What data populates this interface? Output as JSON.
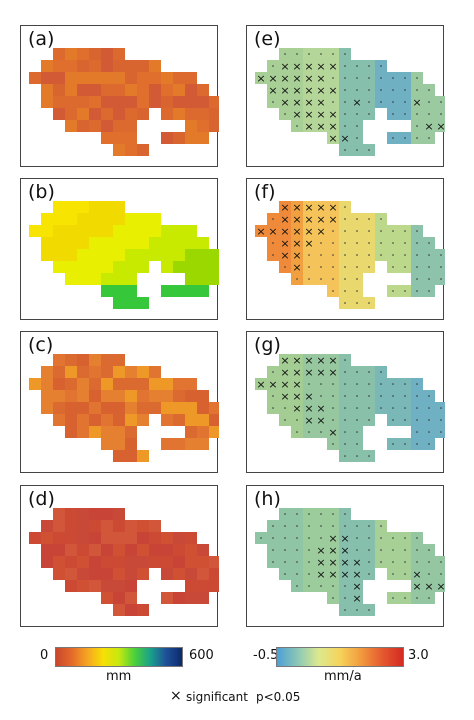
{
  "panels": [
    {
      "id": "a",
      "label": "(a)",
      "kind": "clim",
      "colors": [
        "#d86430",
        "#dc6a2e",
        "#e06e2c",
        "#d25a34",
        "#e27a2a"
      ]
    },
    {
      "id": "b",
      "label": "(b)",
      "kind": "clim",
      "colors": [
        "#f7e400",
        "#f0da00",
        "#e8ef00",
        "#c8ea00",
        "#9ad800"
      ]
    },
    {
      "id": "c",
      "label": "(c)",
      "kind": "clim",
      "colors": [
        "#da6a30",
        "#e07430",
        "#e58030",
        "#ee9828",
        "#d8622f"
      ]
    },
    {
      "id": "d",
      "label": "(d)",
      "kind": "clim",
      "colors": [
        "#cc4a34",
        "#d05034",
        "#c84436",
        "#d2563a",
        "#c94938"
      ]
    },
    {
      "id": "e",
      "label": "(e)",
      "kind": "trend",
      "colors": [
        "#a7cf96",
        "#b5d699",
        "#86c0ac",
        "#6fb0c2",
        "#9ccaa0"
      ]
    },
    {
      "id": "f",
      "label": "(f)",
      "kind": "trend",
      "colors": [
        "#f0a040",
        "#f4c45a",
        "#e8d86e",
        "#bcd88a",
        "#8cc3aa"
      ]
    },
    {
      "id": "g",
      "label": "(g)",
      "kind": "trend",
      "colors": [
        "#a4cd94",
        "#96c79e",
        "#88c0aa",
        "#7ab8b8",
        "#6fb0c2"
      ]
    },
    {
      "id": "h",
      "label": "(h)",
      "kind": "trend",
      "colors": [
        "#8fc4a4",
        "#9ccb9c",
        "#86bfac",
        "#a6d096",
        "#94c6a2"
      ]
    }
  ],
  "colorbar_left": {
    "min_label": "0",
    "max_label": "600",
    "unit": "mm"
  },
  "colorbar_right": {
    "min_label": "-0.5",
    "max_label": "3.0",
    "unit": "mm/a"
  },
  "legend": {
    "marker": "×",
    "label": "significant",
    "pvalue": "p<0.05"
  }
}
